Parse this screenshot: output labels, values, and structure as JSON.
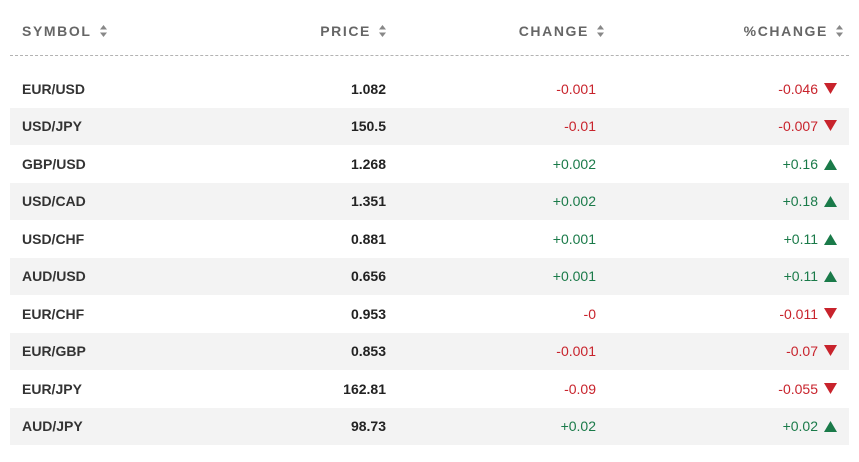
{
  "headers": {
    "symbol": "SYMBOL",
    "price": "PRICE",
    "change": "CHANGE",
    "pct_change": "%CHANGE"
  },
  "colors": {
    "down": "#c8232c",
    "up": "#1a7a49",
    "header_text": "#666666",
    "alt_row": "#f3f3f3"
  },
  "rows": [
    {
      "symbol": "EUR/USD",
      "price": "1.082",
      "change": "-0.001",
      "pct_change": "-0.046",
      "direction": "down"
    },
    {
      "symbol": "USD/JPY",
      "price": "150.5",
      "change": "-0.01",
      "pct_change": "-0.007",
      "direction": "down"
    },
    {
      "symbol": "GBP/USD",
      "price": "1.268",
      "change": "+0.002",
      "pct_change": "+0.16",
      "direction": "up"
    },
    {
      "symbol": "USD/CAD",
      "price": "1.351",
      "change": "+0.002",
      "pct_change": "+0.18",
      "direction": "up"
    },
    {
      "symbol": "USD/CHF",
      "price": "0.881",
      "change": "+0.001",
      "pct_change": "+0.11",
      "direction": "up"
    },
    {
      "symbol": "AUD/USD",
      "price": "0.656",
      "change": "+0.001",
      "pct_change": "+0.11",
      "direction": "up"
    },
    {
      "symbol": "EUR/CHF",
      "price": "0.953",
      "change": "-0",
      "pct_change": "-0.011",
      "direction": "down"
    },
    {
      "symbol": "EUR/GBP",
      "price": "0.853",
      "change": "-0.001",
      "pct_change": "-0.07",
      "direction": "down"
    },
    {
      "symbol": "EUR/JPY",
      "price": "162.81",
      "change": "-0.09",
      "pct_change": "-0.055",
      "direction": "down"
    },
    {
      "symbol": "AUD/JPY",
      "price": "98.73",
      "change": "+0.02",
      "pct_change": "+0.02",
      "direction": "up"
    }
  ]
}
